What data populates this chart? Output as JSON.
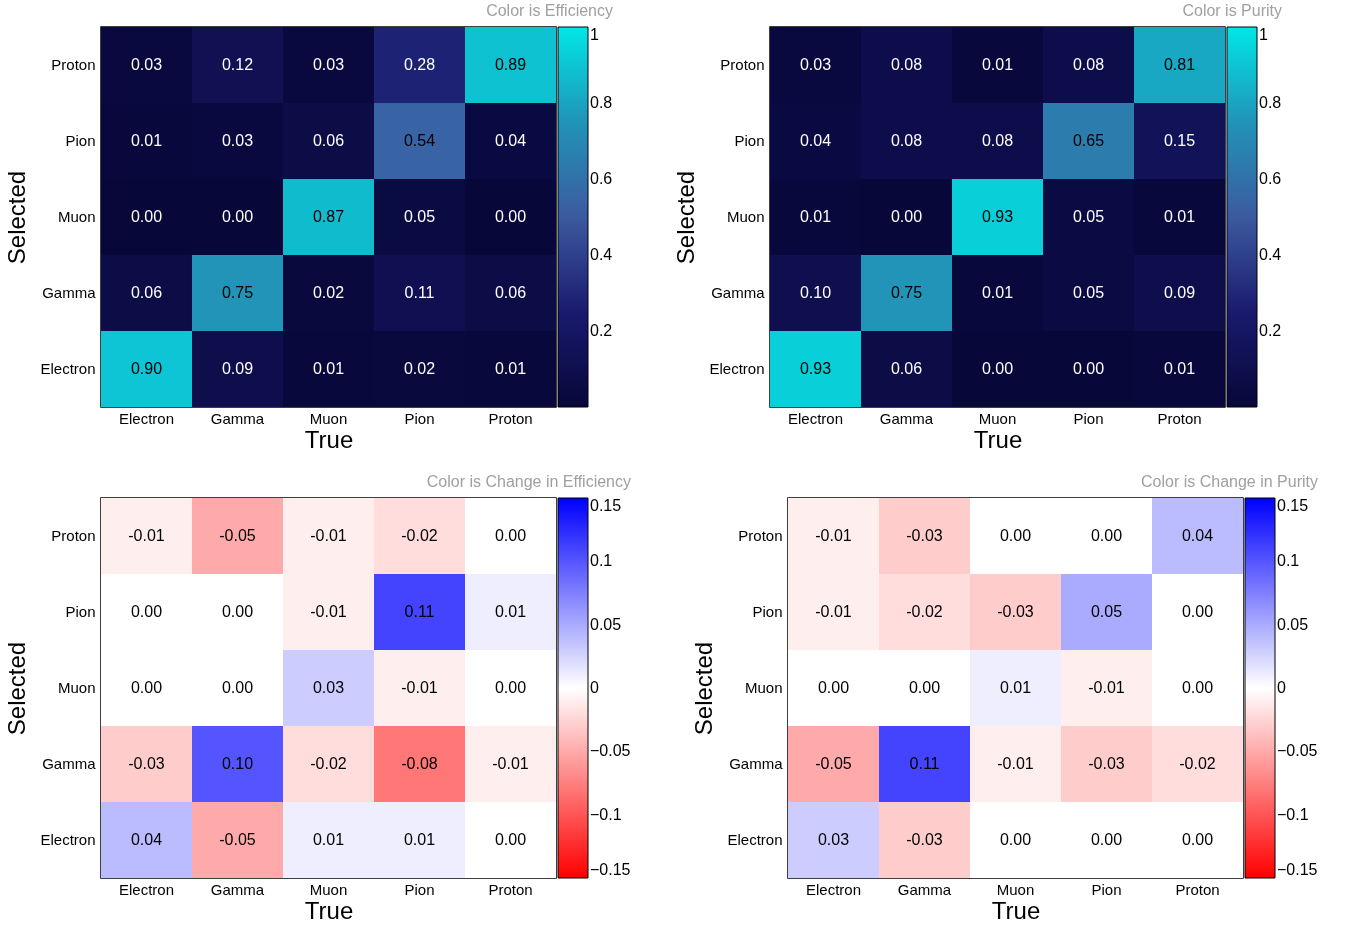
{
  "chart_data": [
    {
      "type": "heatmap",
      "title": "Color is Efficiency",
      "xlabel": "True",
      "ylabel": "Selected",
      "categories": [
        "Electron",
        "Gamma",
        "Muon",
        "Pion",
        "Proton"
      ],
      "y_categories": [
        "Proton",
        "Pion",
        "Muon",
        "Gamma",
        "Electron"
      ],
      "cells": [
        [
          0.03,
          0.12,
          0.03,
          0.28,
          0.89
        ],
        [
          0.01,
          0.03,
          0.06,
          0.54,
          0.04
        ],
        [
          0.0,
          0.0,
          0.87,
          0.05,
          0.0
        ],
        [
          0.06,
          0.75,
          0.02,
          0.11,
          0.06
        ],
        [
          0.9,
          0.09,
          0.01,
          0.02,
          0.01
        ]
      ],
      "cell_labels": [
        [
          "0.03",
          "0.12",
          "0.03",
          "0.28",
          "0.89"
        ],
        [
          "0.01",
          "0.03",
          "0.06",
          "0.54",
          "0.04"
        ],
        [
          "0.00",
          "0.00",
          "0.87",
          "0.05",
          "0.00"
        ],
        [
          "0.06",
          "0.75",
          "0.02",
          "0.11",
          "0.06"
        ],
        [
          "0.90",
          "0.09",
          "0.01",
          "0.02",
          "0.01"
        ]
      ],
      "clim": [
        0,
        1
      ],
      "cticks": [
        0.2,
        0.4,
        0.6,
        0.8,
        1
      ]
    },
    {
      "type": "heatmap",
      "title": "Color is Purity",
      "xlabel": "True",
      "ylabel": "Selected",
      "categories": [
        "Electron",
        "Gamma",
        "Muon",
        "Pion",
        "Proton"
      ],
      "y_categories": [
        "Proton",
        "Pion",
        "Muon",
        "Gamma",
        "Electron"
      ],
      "cells": [
        [
          0.03,
          0.08,
          0.01,
          0.08,
          0.81
        ],
        [
          0.04,
          0.08,
          0.08,
          0.65,
          0.15
        ],
        [
          0.01,
          0.0,
          0.93,
          0.05,
          0.01
        ],
        [
          0.1,
          0.75,
          0.01,
          0.05,
          0.09
        ],
        [
          0.93,
          0.06,
          0.0,
          0.0,
          0.01
        ]
      ],
      "cell_labels": [
        [
          "0.03",
          "0.08",
          "0.01",
          "0.08",
          "0.81"
        ],
        [
          "0.04",
          "0.08",
          "0.08",
          "0.65",
          "0.15"
        ],
        [
          "0.01",
          "0.00",
          "0.93",
          "0.05",
          "0.01"
        ],
        [
          "0.10",
          "0.75",
          "0.01",
          "0.05",
          "0.09"
        ],
        [
          "0.93",
          "0.06",
          "0.00",
          "0.00",
          "0.01"
        ]
      ],
      "clim": [
        0,
        1
      ],
      "cticks": [
        0.2,
        0.4,
        0.6,
        0.8,
        1
      ]
    },
    {
      "type": "heatmap",
      "title": "Color is Change in Efficiency",
      "xlabel": "True",
      "ylabel": "Selected",
      "categories": [
        "Electron",
        "Gamma",
        "Muon",
        "Pion",
        "Proton"
      ],
      "y_categories": [
        "Proton",
        "Pion",
        "Muon",
        "Gamma",
        "Electron"
      ],
      "cells": [
        [
          -0.01,
          -0.05,
          -0.01,
          -0.02,
          0.0
        ],
        [
          0.0,
          0.0,
          -0.01,
          0.11,
          0.01
        ],
        [
          0.0,
          0.0,
          0.03,
          -0.01,
          0.0
        ],
        [
          -0.03,
          0.1,
          -0.02,
          -0.08,
          -0.01
        ],
        [
          0.04,
          -0.05,
          0.01,
          0.01,
          0.0
        ]
      ],
      "cell_labels": [
        [
          "-0.01",
          "-0.05",
          "-0.01",
          "-0.02",
          "0.00"
        ],
        [
          "0.00",
          "0.00",
          "-0.01",
          "0.11",
          "0.01"
        ],
        [
          "0.00",
          "0.00",
          "0.03",
          "-0.01",
          "0.00"
        ],
        [
          "-0.03",
          "0.10",
          "-0.02",
          "-0.08",
          "-0.01"
        ],
        [
          "0.04",
          "-0.05",
          "0.01",
          "0.01",
          "0.00"
        ]
      ],
      "clim": [
        -0.15,
        0.15
      ],
      "cticks": [
        {
          "value": -0.15,
          "label": "−0.15"
        },
        {
          "value": -0.1,
          "label": "−0.1"
        },
        {
          "value": -0.05,
          "label": "−0.05"
        },
        0,
        0.05,
        0.1,
        0.15
      ]
    },
    {
      "type": "heatmap",
      "title": "Color is Change in Purity",
      "xlabel": "True",
      "ylabel": "Selected",
      "categories": [
        "Electron",
        "Gamma",
        "Muon",
        "Pion",
        "Proton"
      ],
      "y_categories": [
        "Proton",
        "Pion",
        "Muon",
        "Gamma",
        "Electron"
      ],
      "cells": [
        [
          -0.01,
          -0.03,
          0.0,
          0.0,
          0.04
        ],
        [
          -0.01,
          -0.02,
          -0.03,
          0.05,
          0.0
        ],
        [
          0.0,
          0.0,
          0.01,
          -0.01,
          0.0
        ],
        [
          -0.05,
          0.11,
          -0.01,
          -0.03,
          -0.02
        ],
        [
          0.03,
          -0.03,
          0.0,
          0.0,
          0.0
        ]
      ],
      "cell_labels": [
        [
          "-0.01",
          "-0.03",
          "0.00",
          "0.00",
          "0.04"
        ],
        [
          "-0.01",
          "-0.02",
          "-0.03",
          "0.05",
          "0.00"
        ],
        [
          "0.00",
          "0.00",
          "0.01",
          "-0.01",
          "0.00"
        ],
        [
          "-0.05",
          "0.11",
          "-0.01",
          "-0.03",
          "-0.02"
        ],
        [
          "0.03",
          "-0.03",
          "0.00",
          "0.00",
          "0.00"
        ]
      ],
      "clim": [
        -0.15,
        0.15
      ],
      "cticks": [
        {
          "value": -0.15,
          "label": "−0.15"
        },
        {
          "value": -0.1,
          "label": "−0.1"
        },
        {
          "value": -0.05,
          "label": "−0.05"
        },
        0,
        0.05,
        0.1,
        0.15
      ]
    }
  ]
}
